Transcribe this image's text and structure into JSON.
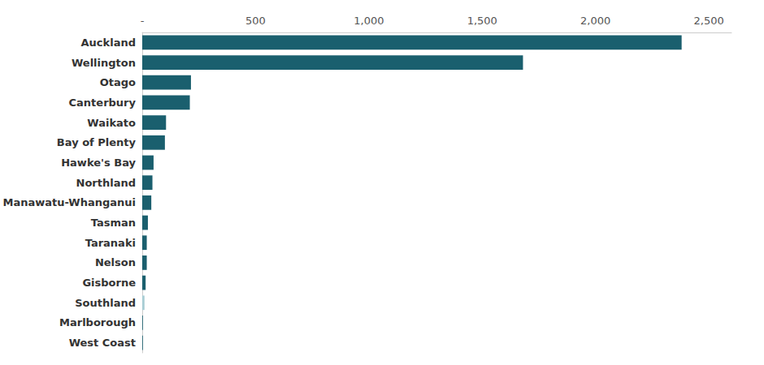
{
  "chart_data": {
    "type": "bar",
    "orientation": "horizontal",
    "categories": [
      "Auckland",
      "Wellington",
      "Otago",
      "Canterbury",
      "Waikato",
      "Bay of Plenty",
      "Hawke's Bay",
      "Northland",
      "Manawatu-Whanganui",
      "Tasman",
      "Taranaki",
      "Nelson",
      "Gisborne",
      "Southland",
      "Marlborough",
      "West Coast"
    ],
    "values": [
      2380,
      1680,
      215,
      210,
      105,
      100,
      50,
      45,
      40,
      25,
      20,
      20,
      15,
      10,
      3,
      3
    ],
    "colors": [
      "#1a5f6e",
      "#1a5f6e",
      "#1a5f6e",
      "#1a5f6e",
      "#1a5f6e",
      "#1a5f6e",
      "#1a5f6e",
      "#1a5f6e",
      "#1a5f6e",
      "#1a5f6e",
      "#1a5f6e",
      "#1a5f6e",
      "#1a5f6e",
      "#a8cdd4",
      "#1a5f6e",
      "#1a5f6e"
    ],
    "xlim": [
      0,
      2600
    ],
    "xticks": [
      {
        "value": 0,
        "label": "-"
      },
      500,
      {
        "value": 1000,
        "label": "1,000"
      },
      {
        "value": 1500,
        "label": "1,500"
      },
      {
        "value": 2000,
        "label": "2,000"
      },
      {
        "value": 2500,
        "label": "2,500"
      }
    ],
    "grid": false
  }
}
